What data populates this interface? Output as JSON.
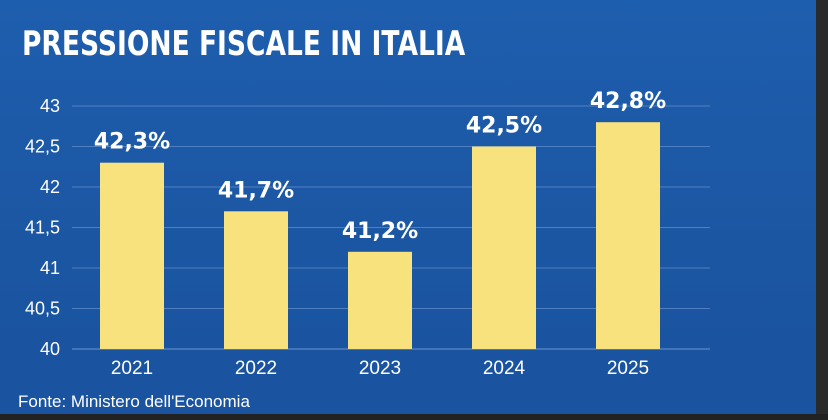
{
  "chart_data": {
    "type": "bar",
    "title": "PRESSIONE FISCALE IN ITALIA",
    "categories": [
      "2021",
      "2022",
      "2023",
      "2024",
      "2025"
    ],
    "values": [
      42.3,
      41.7,
      41.2,
      42.5,
      42.8
    ],
    "data_labels": [
      "42,3%",
      "41,7%",
      "41,2%",
      "42,5%",
      "42,8%"
    ],
    "yticks": [
      40,
      40.5,
      41,
      41.5,
      42,
      42.5,
      43
    ],
    "ytick_labels": [
      "40",
      "40,5",
      "41",
      "41,5",
      "42",
      "42,5",
      "43"
    ],
    "ylim": [
      40,
      43
    ],
    "xlabel": "",
    "ylabel": "",
    "grid": true,
    "source": "Fonte: Ministero dell'Economia",
    "colors": {
      "background": "#1d5aa6",
      "bar": "#f7e27e",
      "grid": "#4f7fc0",
      "text": "#ffffff"
    }
  }
}
